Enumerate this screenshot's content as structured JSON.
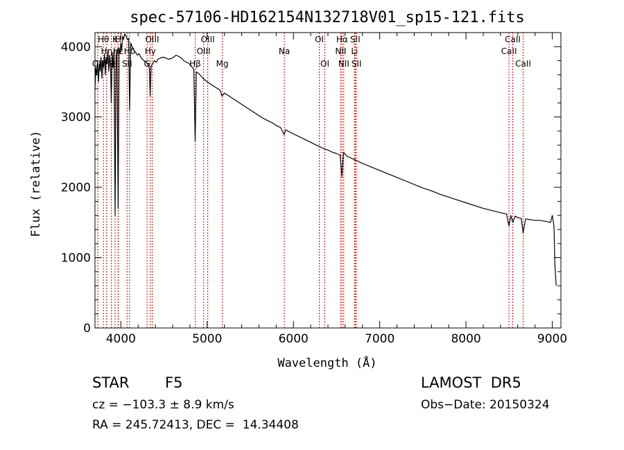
{
  "chart_data": {
    "type": "line",
    "title": "spec-57106-HD162154N132718V01_sp15-121.fits",
    "xlabel": "Wavelength (Å)",
    "ylabel": "Flux (relative)",
    "xlim": [
      3700,
      9100
    ],
    "ylim": [
      0,
      4200
    ],
    "xticks": [
      4000,
      5000,
      6000,
      7000,
      8000,
      9000
    ],
    "yticks": [
      0,
      1000,
      2000,
      3000,
      4000
    ],
    "grid": false,
    "line_color": "#000000",
    "marker_color": "#cc0000",
    "series": [
      {
        "x": [
          3700,
          3710,
          3720,
          3730,
          3740,
          3750,
          3760,
          3770,
          3780,
          3790,
          3800,
          3810,
          3820,
          3830,
          3840,
          3850,
          3860,
          3870,
          3880,
          3889,
          3900,
          3910,
          3920,
          3933,
          3945,
          3955,
          3968,
          3980,
          3990,
          4000,
          4010,
          4020,
          4030,
          4045,
          4060,
          4075,
          4090,
          4101,
          4115,
          4130,
          4150,
          4170,
          4190,
          4210,
          4230,
          4250,
          4270,
          4290,
          4310,
          4330,
          4340,
          4350,
          4370,
          4390,
          4410,
          4430,
          4460,
          4490,
          4520,
          4550,
          4580,
          4610,
          4640,
          4670,
          4700,
          4730,
          4760,
          4790,
          4820,
          4845,
          4861,
          4875,
          4900,
          4930,
          4960,
          5000,
          5050,
          5100,
          5150,
          5172,
          5200,
          5250,
          5300,
          5350,
          5400,
          5450,
          5500,
          5550,
          5600,
          5650,
          5700,
          5750,
          5800,
          5850,
          5893,
          5910,
          5950,
          6000,
          6050,
          6100,
          6150,
          6200,
          6250,
          6300,
          6350,
          6400,
          6450,
          6500,
          6540,
          6563,
          6580,
          6620,
          6700,
          6800,
          6900,
          7000,
          7100,
          7200,
          7300,
          7400,
          7500,
          7600,
          7700,
          7800,
          7900,
          8000,
          8100,
          8200,
          8300,
          8400,
          8470,
          8498,
          8520,
          8542,
          8570,
          8600,
          8640,
          8662,
          8690,
          8750,
          8800,
          8850,
          8900,
          8950,
          8980,
          9000,
          9020,
          9030,
          9035,
          9045
        ],
        "y": [
          3400,
          3700,
          3600,
          3800,
          3500,
          3750,
          3650,
          3850,
          3550,
          3800,
          3700,
          3900,
          3600,
          3850,
          3750,
          3950,
          3650,
          3880,
          3780,
          3200,
          3920,
          3700,
          3950,
          1600,
          3850,
          3960,
          1700,
          3980,
          3900,
          4050,
          3950,
          4150,
          4100,
          4180,
          4150,
          4100,
          4120,
          3100,
          4050,
          4000,
          3950,
          3920,
          3880,
          3900,
          3850,
          3820,
          3800,
          3780,
          3760,
          3700,
          3300,
          3720,
          3760,
          3800,
          3780,
          3820,
          3840,
          3850,
          3840,
          3820,
          3830,
          3850,
          3880,
          3860,
          3840,
          3800,
          3780,
          3760,
          3720,
          3680,
          2650,
          3640,
          3620,
          3580,
          3540,
          3500,
          3460,
          3420,
          3380,
          3300,
          3340,
          3300,
          3260,
          3220,
          3180,
          3140,
          3100,
          3060,
          3020,
          2980,
          2950,
          2920,
          2880,
          2850,
          2750,
          2820,
          2790,
          2760,
          2730,
          2700,
          2670,
          2640,
          2610,
          2580,
          2550,
          2530,
          2500,
          2480,
          2460,
          2150,
          2500,
          2440,
          2400,
          2340,
          2290,
          2240,
          2190,
          2140,
          2090,
          2040,
          1990,
          1950,
          1900,
          1860,
          1820,
          1780,
          1740,
          1700,
          1670,
          1640,
          1620,
          1450,
          1600,
          1500,
          1590,
          1570,
          1560,
          1350,
          1550,
          1540,
          1530,
          1530,
          1520,
          1510,
          1500,
          1600,
          1450,
          900,
          800,
          600
        ]
      }
    ],
    "line_markers": [
      {
        "wavelength": 3733,
        "label": "OII",
        "row": 3
      },
      {
        "wavelength": 3798,
        "label": "Hθ",
        "row": 1
      },
      {
        "wavelength": 3835,
        "label": "Hη",
        "row": 2
      },
      {
        "wavelength": 3889,
        "label": "HeI",
        "row": 3
      },
      {
        "wavelength": 3933,
        "label": "K",
        "row": 1
      },
      {
        "wavelength": 3968,
        "label": "H",
        "row": 1
      },
      {
        "wavelength": 3970,
        "label": "Hε",
        "row": 2
      },
      {
        "wavelength": 4101,
        "label": "Hδ",
        "row": 2
      },
      {
        "wavelength": 4072,
        "label": "SII",
        "row": 3
      },
      {
        "wavelength": 4304,
        "label": "G",
        "row": 3
      },
      {
        "wavelength": 4341,
        "label": "Hγ",
        "row": 2
      },
      {
        "wavelength": 4363,
        "label": "OIII",
        "row": 1
      },
      {
        "wavelength": 4861,
        "label": "Hβ",
        "row": 3
      },
      {
        "wavelength": 4959,
        "label": "OIII",
        "row": 2
      },
      {
        "wavelength": 5007,
        "label": "OIII",
        "row": 1
      },
      {
        "wavelength": 5175,
        "label": "Mg",
        "row": 3
      },
      {
        "wavelength": 5894,
        "label": "Na",
        "row": 2
      },
      {
        "wavelength": 6300,
        "label": "OI",
        "row": 1
      },
      {
        "wavelength": 6364,
        "label": "OI",
        "row": 3
      },
      {
        "wavelength": 6548,
        "label": "NII",
        "row": 2
      },
      {
        "wavelength": 6563,
        "label": "Hα",
        "row": 1
      },
      {
        "wavelength": 6583,
        "label": "NII",
        "row": 3
      },
      {
        "wavelength": 6708,
        "label": "Li",
        "row": 2
      },
      {
        "wavelength": 6716,
        "label": "SII",
        "row": 1
      },
      {
        "wavelength": 6730,
        "label": "SII",
        "row": 3
      },
      {
        "wavelength": 8498,
        "label": "CaII",
        "row": 2
      },
      {
        "wavelength": 8542,
        "label": "CaII",
        "row": 1
      },
      {
        "wavelength": 8662,
        "label": "CaII",
        "row": 3
      }
    ]
  },
  "info": {
    "class": "STAR",
    "subclass": "F5",
    "survey": "LAMOST  DR5",
    "cz": "cz = −103.3 ± 8.9 km/s",
    "obs_date": "Obs−Date: 20150324",
    "radec": "RA = 245.72413, DEC =  14.34408"
  }
}
